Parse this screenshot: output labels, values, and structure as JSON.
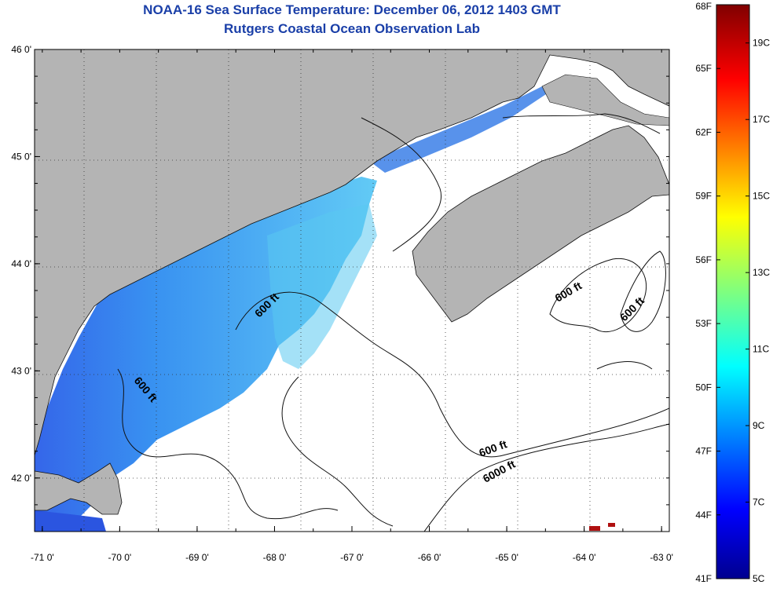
{
  "title": "NOAA-16 Sea Surface Temperature:  December 06, 2012 1403 GMT",
  "subtitle": "Rutgers Coastal Ocean Observation Lab",
  "map": {
    "lon_range": [
      -71.1,
      -62.9
    ],
    "lat_range": [
      41.5,
      46.0
    ],
    "lon_ticks": [
      "-71 0'",
      "-70 0'",
      "-69 0'",
      "-68 0'",
      "-67 0'",
      "-66 0'",
      "-65 0'",
      "-64 0'",
      "-63 0'"
    ],
    "lat_ticks": [
      "46 0'",
      "45 0'",
      "44 0'",
      "43 0'",
      "42 0'"
    ],
    "grid": true,
    "land_color": "#b4b4b4",
    "no_data_color": "#ffffff"
  },
  "contour_labels": [
    {
      "text": "600 ft"
    },
    {
      "text": "600 ft"
    },
    {
      "text": "600 ft"
    },
    {
      "text": "600 ft"
    },
    {
      "text": "600 ft"
    },
    {
      "text": "6000 ft"
    }
  ],
  "colorbar": {
    "range_f": [
      41,
      68
    ],
    "fahrenheit_labels": [
      "68F",
      "65F",
      "62F",
      "59F",
      "56F",
      "53F",
      "50F",
      "47F",
      "44F",
      "41F"
    ],
    "celsius_labels": [
      "19C",
      "17C",
      "15C",
      "13C",
      "11C",
      "9C",
      "7C",
      "5C"
    ],
    "colormap": "jet"
  }
}
